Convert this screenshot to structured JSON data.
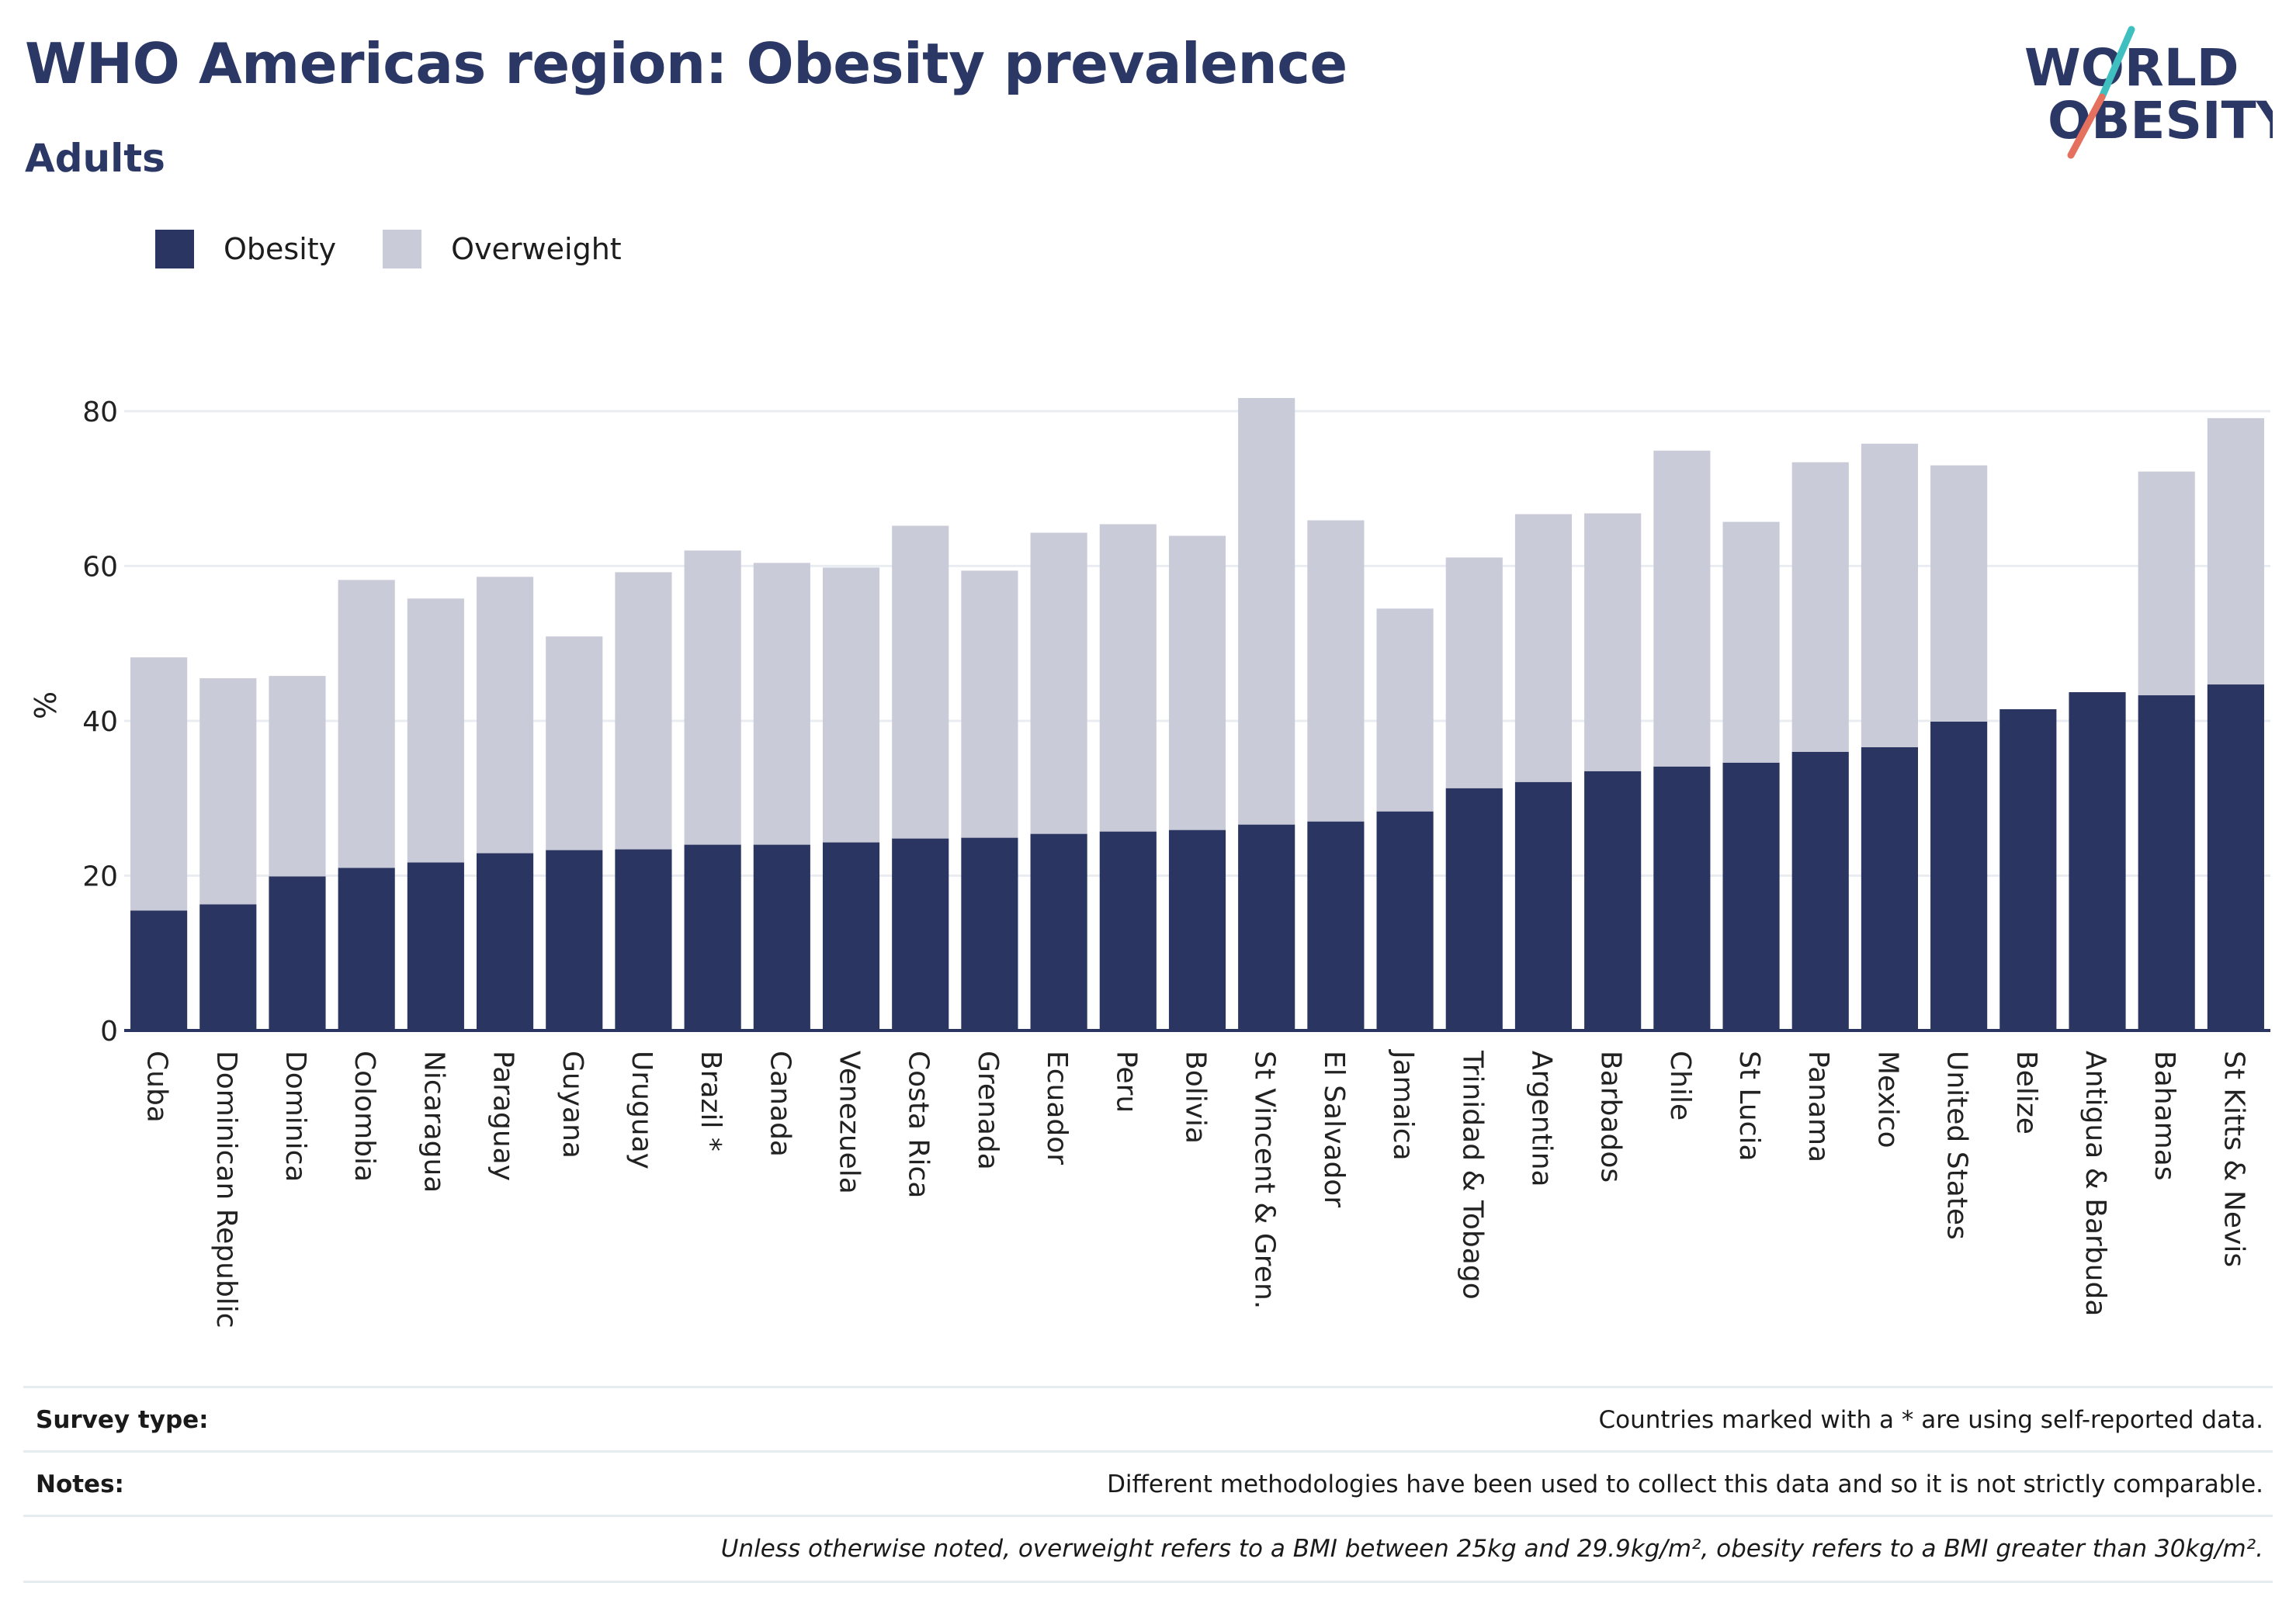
{
  "header": {
    "title": "WHO Americas region: Obesity prevalence",
    "subtitle": "Adults"
  },
  "logo": {
    "line1": "WORLD",
    "line2": "OBESITY"
  },
  "colors": {
    "obesity": "#2a3561",
    "overweight": "#cacbd8",
    "title": "#2b3866",
    "logo_teal": "#3fbfbf",
    "logo_coral": "#e5705e"
  },
  "chart_data": {
    "type": "bar",
    "stacked": true,
    "title": "",
    "xlabel": "",
    "ylabel": "%",
    "ylim": [
      0,
      85
    ],
    "yticks": [
      "0",
      "20",
      "40",
      "60",
      "80"
    ],
    "grid": true,
    "legend_position": "top-left",
    "categories": [
      "Cuba",
      "Dominican Republic",
      "Dominica",
      "Colombia",
      "Nicaragua",
      "Paraguay",
      "Guyana",
      "Uruguay",
      "Brazil *",
      "Canada",
      "Venezuela",
      "Costa Rica",
      "Grenada",
      "Ecuador",
      "Peru",
      "Bolivia",
      "St Vincent & Gren.",
      "El Salvador",
      "Jamaica",
      "Trinidad & Tobago",
      "Argentina",
      "Barbados",
      "Chile",
      "St Lucia",
      "Panama",
      "Mexico",
      "United States",
      "Belize",
      "Antigua & Barbuda",
      "Bahamas",
      "St Kitts & Nevis"
    ],
    "series": [
      {
        "name": "Obesity",
        "color": "#2a3561",
        "values": [
          15.5,
          16.3,
          19.9,
          21.0,
          21.7,
          22.9,
          23.3,
          23.4,
          24.0,
          24.0,
          24.3,
          24.8,
          24.9,
          25.4,
          25.7,
          25.9,
          26.6,
          27.0,
          28.3,
          31.3,
          32.1,
          33.5,
          34.1,
          34.6,
          36.0,
          36.6,
          39.9,
          41.5,
          43.7,
          43.3,
          44.7
        ]
      },
      {
        "name": "Overweight",
        "color": "#cacbd8",
        "values": [
          32.7,
          29.2,
          25.9,
          37.2,
          34.1,
          35.7,
          27.6,
          35.8,
          38.0,
          36.4,
          35.5,
          40.4,
          34.5,
          38.9,
          39.7,
          38.0,
          55.1,
          38.9,
          26.2,
          29.8,
          34.6,
          33.3,
          40.8,
          31.1,
          37.4,
          39.2,
          33.1,
          0,
          0,
          28.9,
          34.4
        ]
      }
    ]
  },
  "footer": {
    "survey_label": "Survey type:",
    "survey_text": "Countries marked with a * are using self-reported data.",
    "notes_label": "Notes:",
    "notes_text": "Different methodologies have been used to collect this data and so it is not strictly comparable.",
    "definition_text": "Unless otherwise noted, overweight refers to a BMI between 25kg and 29.9kg/m², obesity refers to a BMI greater than 30kg/m²."
  }
}
